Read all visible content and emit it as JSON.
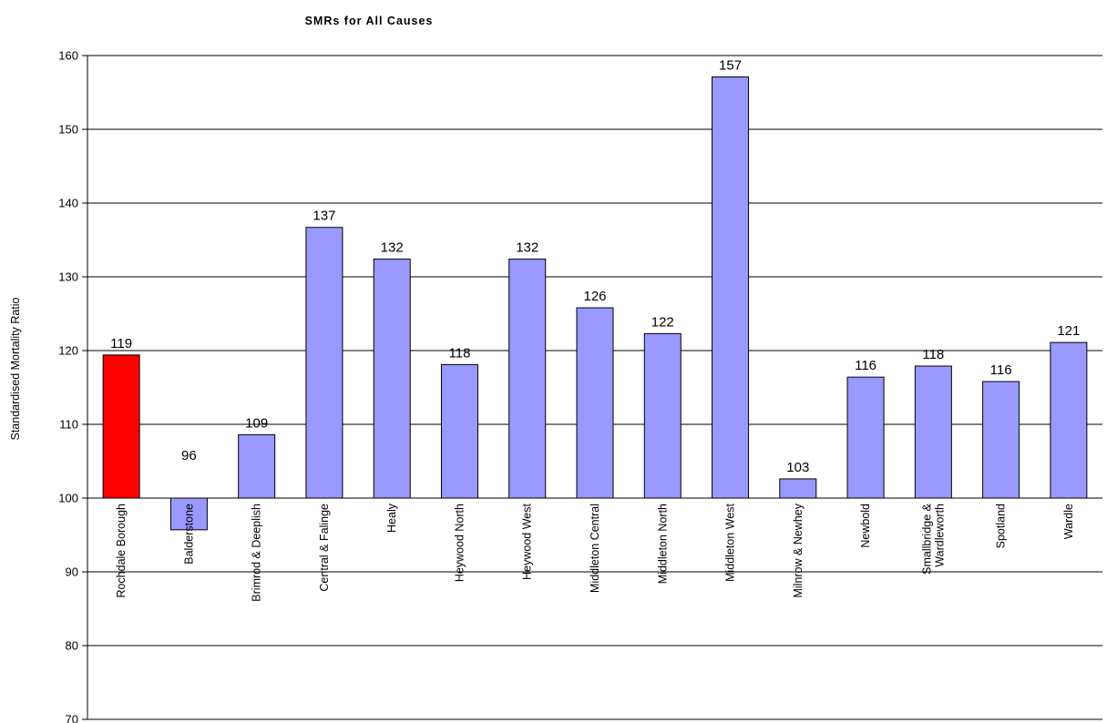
{
  "chart_data": {
    "type": "bar",
    "title": "SMRs for All Causes",
    "xlabel": "",
    "ylabel": "Standardised Mortality Ratio",
    "ylim": [
      70,
      160
    ],
    "yticks": [
      70,
      80,
      90,
      100,
      110,
      120,
      130,
      140,
      150,
      160
    ],
    "baseline": 100,
    "grid": true,
    "categories": [
      "Rochdale Borough",
      "Balderstone",
      "Brimrod & Deeplish",
      "Central & Falinge",
      "Healy",
      "Heywood North",
      "Heywood West",
      "Middleton Central",
      "Middleton North",
      "Middleton West",
      "Milnrow & Newhey",
      "Newbold",
      "Smallbridge & Wardleworth",
      "Spotland",
      "Wardle"
    ],
    "category_label_lines": [
      [
        "Rochdale Borough"
      ],
      [
        "Balderstone"
      ],
      [
        "Brimrod & Deeplish"
      ],
      [
        "Central & Falinge"
      ],
      [
        "Healy"
      ],
      [
        "Heywood North"
      ],
      [
        "Heywood West"
      ],
      [
        "Middleton Central"
      ],
      [
        "Middleton North"
      ],
      [
        "Middleton West"
      ],
      [
        "Milnrow & Newhey"
      ],
      [
        "Newbold"
      ],
      [
        "Smallbridge &",
        "Wardleworth"
      ],
      [
        "Spotland"
      ],
      [
        "Wardle"
      ]
    ],
    "values": [
      119.4,
      95.7,
      108.6,
      136.7,
      132.4,
      118.1,
      132.4,
      125.8,
      122.3,
      157.1,
      102.6,
      116.4,
      117.9,
      115.8,
      121.1
    ],
    "data_labels": [
      "119",
      "96",
      "109",
      "137",
      "132",
      "118",
      "132",
      "126",
      "122",
      "157",
      "103",
      "116",
      "118",
      "116",
      "121"
    ],
    "colors": {
      "highlight": "#ff0000",
      "bar": "#9999ff",
      "outline": "#000000",
      "grid": "#000000"
    },
    "highlight_index": 0
  }
}
